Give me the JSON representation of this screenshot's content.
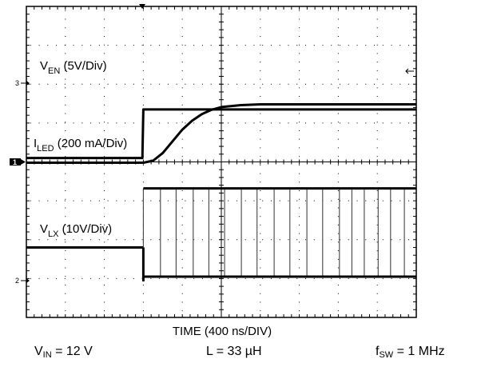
{
  "chart_data": {
    "type": "line",
    "title": "",
    "xlabel": "TIME (400 ns/DIV)",
    "grid": true,
    "x_divisions": 10,
    "y_divisions": 8,
    "time_per_div_ns": 400,
    "channel_markers": [
      "3",
      "1",
      "2"
    ],
    "series": [
      {
        "name": "V_EN",
        "label_main": "V",
        "label_sub": "EN",
        "label_rest": " (5V/Div)",
        "scale": "5V/Div",
        "x_ns": [
          0,
          1190,
          1200,
          4000
        ],
        "y_div": [
          0.0,
          0.0,
          1.25,
          1.25
        ]
      },
      {
        "name": "I_LED",
        "label_main": "I",
        "label_sub": "LED",
        "label_rest": " (200 mA/Div)",
        "scale": "200 mA/Div",
        "x_ns": [
          0,
          1200,
          1300,
          1400,
          1500,
          1600,
          1700,
          1800,
          1900,
          2000,
          2200,
          2400,
          4000
        ],
        "y_div": [
          0.0,
          0.0,
          0.05,
          0.25,
          0.55,
          0.85,
          1.08,
          1.25,
          1.36,
          1.43,
          1.48,
          1.5,
          1.5
        ]
      },
      {
        "name": "V_LX",
        "label_main": "V",
        "label_sub": "LX",
        "label_rest": " (10V/Div)",
        "scale": "10V/Div",
        "x_ns": [
          0,
          1190,
          1200,
          4000
        ],
        "y_low_div": [
          0.0,
          0.0,
          -0.75,
          -0.75
        ],
        "y_high_div": [
          0.0,
          0.0,
          1.52,
          1.52
        ],
        "switching_start_ns": 1200,
        "switching_frequency_MHz": 1
      }
    ]
  },
  "footer": {
    "vin_main": "V",
    "vin_sub": "IN",
    "vin_rest": " = 12 V",
    "inductor": "L = 33 µH",
    "fsw_main": "f",
    "fsw_sub": "SW",
    "fsw_rest": " = 1 MHz"
  },
  "colors": {
    "trace": "#000000",
    "grid": "#000000",
    "background": "#ffffff"
  }
}
